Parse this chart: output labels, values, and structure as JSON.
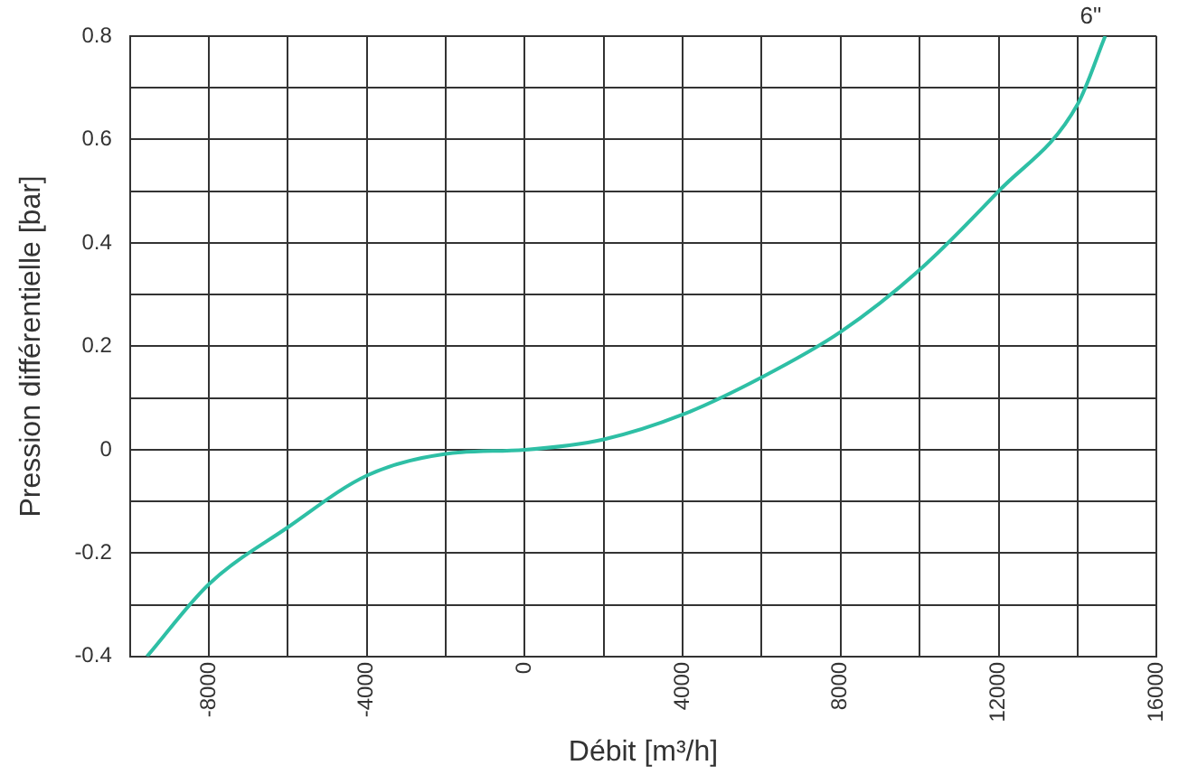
{
  "chart_data": {
    "type": "line",
    "xlabel": "Débit [m³/h]",
    "ylabel": "Pression différentielle [bar]",
    "xlim": [
      -10000,
      16000
    ],
    "xticks": [
      {
        "value": -10000,
        "label": null
      },
      -8000,
      {
        "value": -6000,
        "label": null
      },
      -4000,
      {
        "value": -2000,
        "label": null
      },
      0,
      {
        "value": 2000,
        "label": null
      },
      4000,
      {
        "value": 6000,
        "label": null
      },
      8000,
      {
        "value": 10000,
        "label": null
      },
      12000,
      {
        "value": 14000,
        "label": null
      },
      16000
    ],
    "ylim": [
      -0.4,
      0.8
    ],
    "yticks": [
      -0.4,
      {
        "value": -0.3,
        "label": null
      },
      -0.2,
      {
        "value": -0.1,
        "label": null
      },
      0,
      {
        "value": 0.1,
        "label": null
      },
      0.2,
      {
        "value": 0.3,
        "label": null
      },
      0.4,
      {
        "value": 0.5,
        "label": null
      },
      0.6,
      {
        "value": 0.7,
        "label": null
      },
      0.8
    ],
    "grid": true,
    "legend": false,
    "marker": "none",
    "line_style": "solid",
    "series": [
      {
        "name": "6\"",
        "color": "#2ebfa5",
        "x": [
          -9570,
          -8000,
          -6000,
          -4000,
          -2000,
          0,
          2000,
          4000,
          6000,
          8000,
          10000,
          12000,
          14000,
          14700
        ],
        "values": [
          -0.4,
          -0.26,
          -0.15,
          -0.05,
          -0.008,
          0,
          0.02,
          0.068,
          0.14,
          0.228,
          0.348,
          0.5,
          0.668,
          0.8
        ]
      }
    ]
  }
}
